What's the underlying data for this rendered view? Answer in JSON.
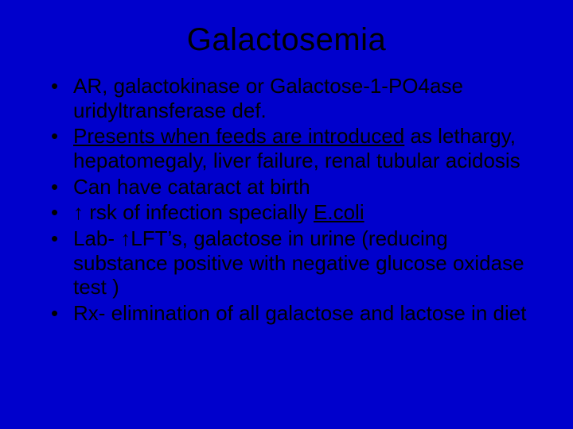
{
  "slide": {
    "background_color": "#0000cc",
    "text_color": "#000000",
    "font_family": "Arial",
    "title": {
      "text": "Galactosemia",
      "fontsize": 40,
      "align": "center"
    },
    "bullets_fontsize": 26,
    "bullets": [
      {
        "segments": [
          {
            "text": "AR, galactokinase or Galactose-1-PO4ase uridyltransferase def."
          }
        ]
      },
      {
        "segments": [
          {
            "text": "Presents when feeds are introduced",
            "underline": true
          },
          {
            "text": " as lethargy, hepatomegaly, liver failure, renal tubular acidosis"
          }
        ]
      },
      {
        "segments": [
          {
            "text": "Can have cataract at birth"
          }
        ]
      },
      {
        "segments": [
          {
            "text": "↑ rsk of infection specially "
          },
          {
            "text": "E.coli",
            "underline": true
          }
        ]
      },
      {
        "segments": [
          {
            "text": "Lab- ↑LFT’s, galactose in urine (reducing substance positive with negative glucose oxidase test )"
          }
        ]
      },
      {
        "segments": [
          {
            "text": "Rx- elimination of all galactose and lactose in diet"
          }
        ]
      }
    ]
  }
}
